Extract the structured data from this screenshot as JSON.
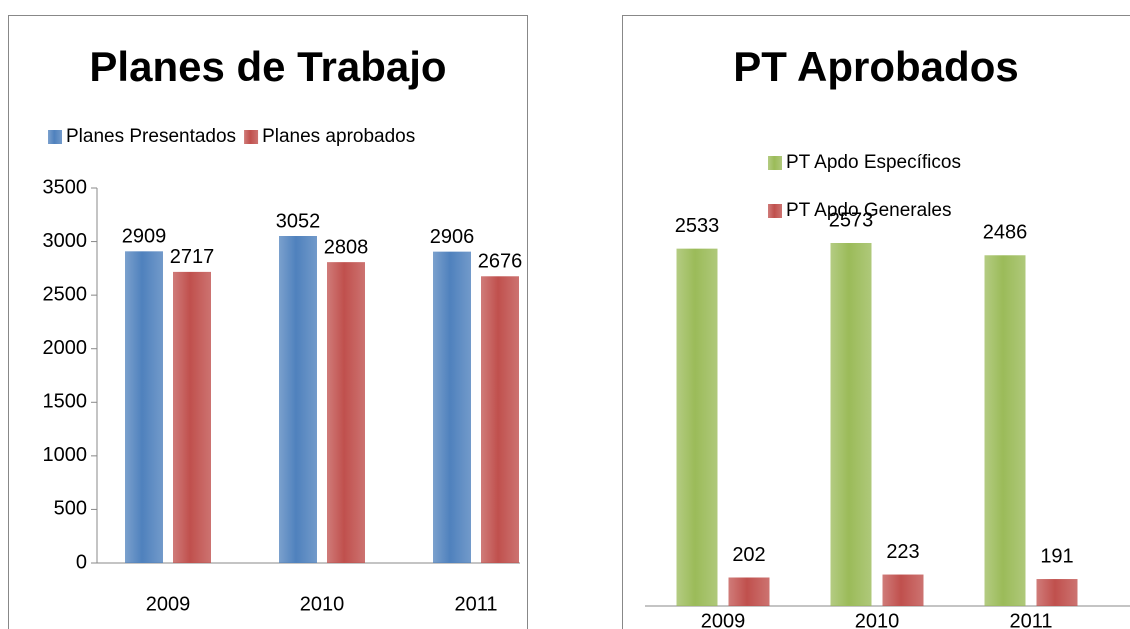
{
  "chart_data": [
    {
      "type": "bar",
      "title": "Planes de Trabajo",
      "categories": [
        "2009",
        "2010",
        "2011"
      ],
      "series": [
        {
          "name": "Planes Presentados",
          "color": "#4f81bd",
          "values": [
            2909,
            3052,
            2906
          ]
        },
        {
          "name": "Planes aprobados",
          "color": "#c0504d",
          "values": [
            2717,
            2808,
            2676
          ]
        }
      ],
      "ylim": [
        0,
        3500
      ],
      "yticks": [
        0,
        500,
        1000,
        1500,
        2000,
        2500,
        3000,
        3500
      ],
      "grid": false,
      "legend": "top"
    },
    {
      "type": "bar",
      "title": "PT Aprobados",
      "categories": [
        "2009",
        "2010",
        "2011"
      ],
      "series": [
        {
          "name": "PT Apdo Específicos",
          "color": "#9bbb59",
          "values": [
            2533,
            2573,
            2486
          ]
        },
        {
          "name": "PT Apdo Generales",
          "color": "#c0504d",
          "values": [
            202,
            223,
            191
          ]
        }
      ],
      "grid": false,
      "legend": "top"
    }
  ]
}
